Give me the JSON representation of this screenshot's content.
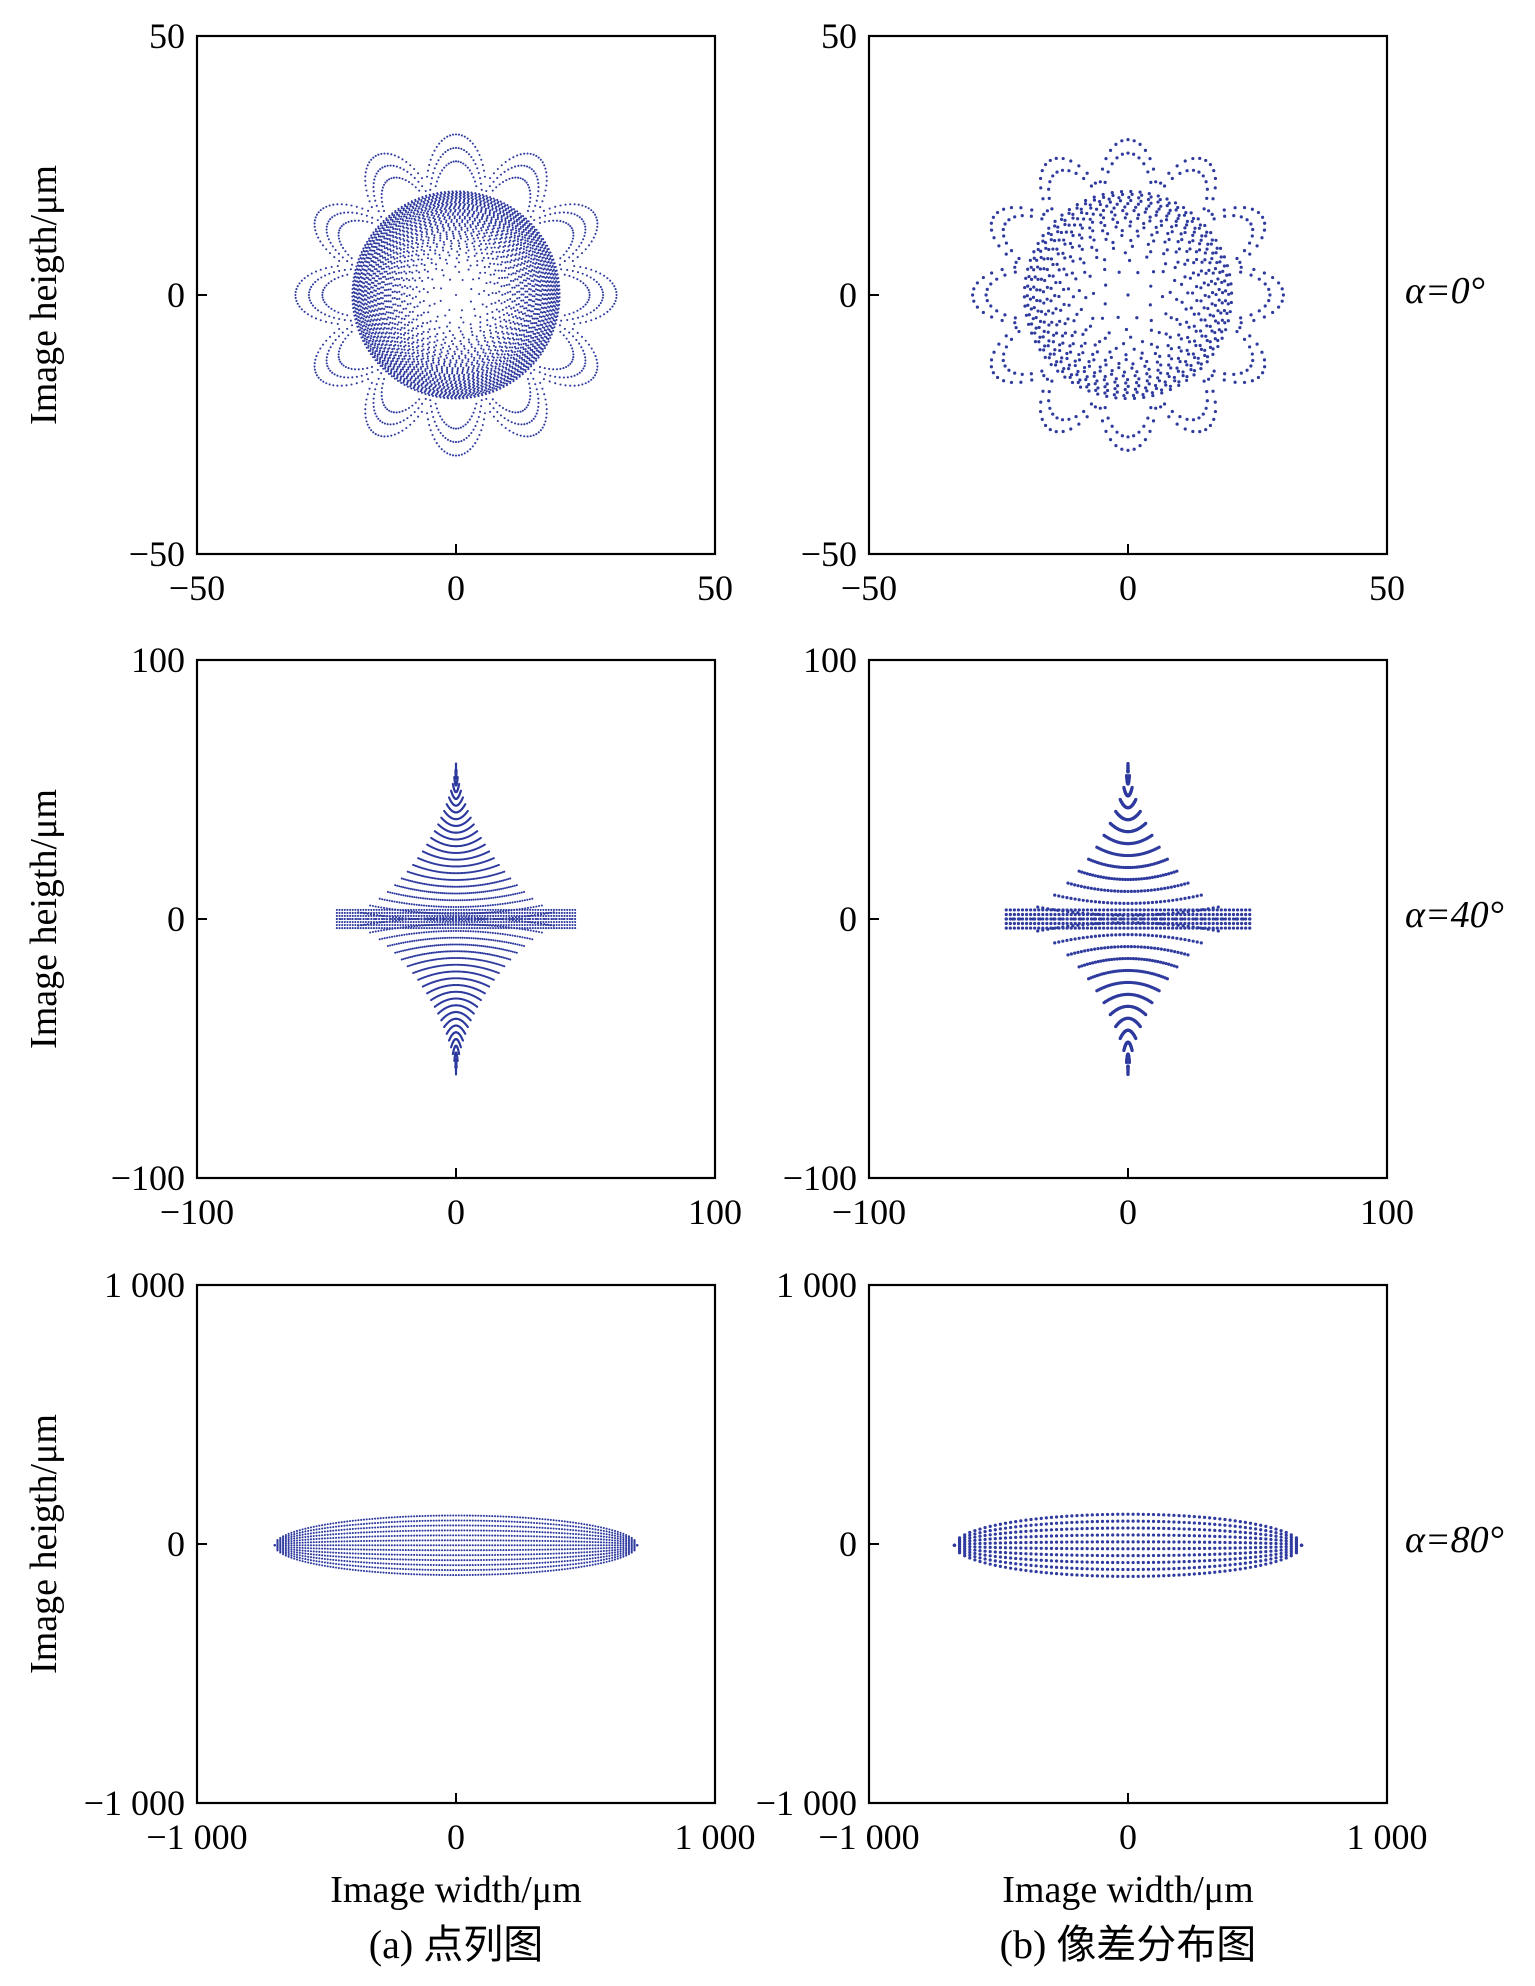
{
  "figure": {
    "captions": [
      "(a) 点列图",
      "(b) 像差分布图"
    ],
    "row_labels": [
      "α=0°",
      "α=40°",
      "α=80°"
    ],
    "ylabel": "Image heigth/μm",
    "xlabel": "Image width/μm"
  },
  "colors": {
    "points": "#2E3A9E",
    "frame": "#000000"
  },
  "chart_data": [
    {
      "id": "a0",
      "type": "scatter",
      "title": "",
      "xlabel": "",
      "ylabel": "Image heigth/μm",
      "xlim": [
        -50,
        50
      ],
      "ylim": [
        -50,
        50
      ],
      "xtick_labels": [
        "−50",
        "0",
        "50"
      ],
      "ytick_labels": [
        "−50",
        "0",
        "50"
      ],
      "pattern": "spot_core",
      "core_radius": 20,
      "wing_radius": 31,
      "density": "dense",
      "grid": false
    },
    {
      "id": "b0",
      "type": "scatter",
      "title": "",
      "xlabel": "",
      "ylabel": "",
      "xlim": [
        -50,
        50
      ],
      "ylim": [
        -50,
        50
      ],
      "xtick_labels": [
        "−50",
        "0",
        "50"
      ],
      "ytick_labels": [
        "−50",
        "0",
        "50"
      ],
      "pattern": "spot_core",
      "core_radius": 20,
      "wing_radius": 30,
      "density": "sparse",
      "grid": false
    },
    {
      "id": "a40",
      "type": "scatter",
      "title": "",
      "xlabel": "",
      "ylabel": "Image heigth/μm",
      "xlim": [
        -100,
        100
      ],
      "ylim": [
        -100,
        100
      ],
      "xtick_labels": [
        "−100",
        "0",
        "100"
      ],
      "ytick_labels": [
        "−100",
        "0",
        "100"
      ],
      "pattern": "astroid",
      "half_width": 46,
      "half_height": 60,
      "density": "dense",
      "grid": false
    },
    {
      "id": "b40",
      "type": "scatter",
      "title": "",
      "xlabel": "",
      "ylabel": "",
      "xlim": [
        -100,
        100
      ],
      "ylim": [
        -100,
        100
      ],
      "xtick_labels": [
        "−100",
        "0",
        "100"
      ],
      "ytick_labels": [
        "−100",
        "0",
        "100"
      ],
      "pattern": "astroid",
      "half_width": 47,
      "half_height": 60,
      "density": "sparse",
      "grid": false
    },
    {
      "id": "a80",
      "type": "scatter",
      "title": "",
      "xlabel": "Image width/μm",
      "ylabel": "Image heigth/μm",
      "xlim": [
        -1000,
        1000
      ],
      "ylim": [
        -1000,
        1000
      ],
      "xtick_labels": [
        "−1 000",
        "0",
        "1 000"
      ],
      "ytick_labels": [
        "−1 000",
        "0",
        "1 000"
      ],
      "pattern": "ellipse",
      "half_width": 700,
      "half_height": 115,
      "center_y": -5,
      "density": "dense",
      "grid": false
    },
    {
      "id": "b80",
      "type": "scatter",
      "title": "",
      "xlabel": "Image width/μm",
      "ylabel": "",
      "xlim": [
        -1000,
        1000
      ],
      "ylim": [
        -1000,
        1000
      ],
      "xtick_labels": [
        "−1 000",
        "0",
        "1 000"
      ],
      "ytick_labels": [
        "−1 000",
        "0",
        "1 000"
      ],
      "pattern": "ellipse",
      "half_width": 670,
      "half_height": 120,
      "center_y": -5,
      "density": "sparse",
      "grid": false
    }
  ]
}
